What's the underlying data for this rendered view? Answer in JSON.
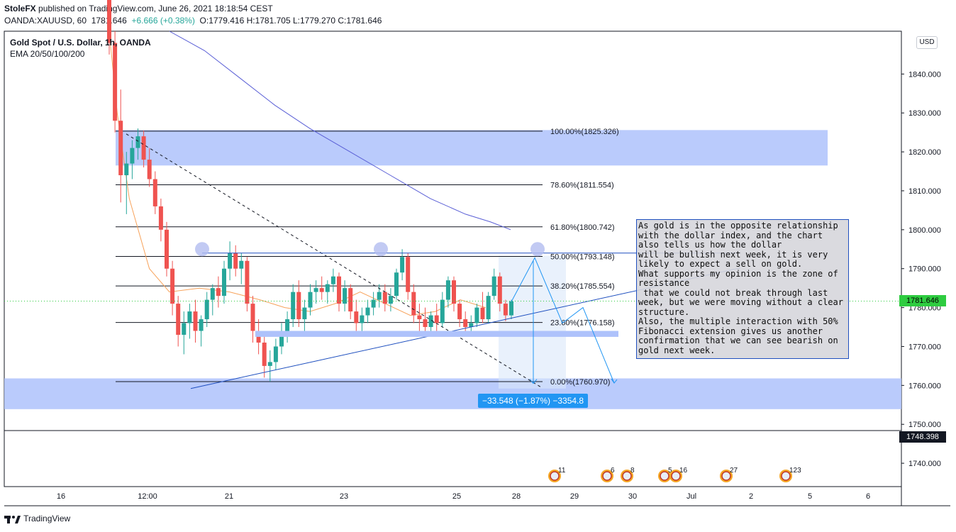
{
  "header": {
    "line1_author": "StoleFX",
    "line1_rest": "published on TradingView.com, June 26, 2021 18:18:54 CEST",
    "symbol": "OANDA:XAUUSD, 60",
    "last": "1781.646",
    "change": "+6.666 (+0.38%)",
    "ohlc": "O:1779.416 H:1781.705 L:1779.270 C:1781.646"
  },
  "legend": {
    "title": "Gold Spot / U.S. Dollar, 1h, OANDA",
    "indicators": "EMA 20/50/100/200"
  },
  "currency_button": "USD",
  "price_tag": "1781.646",
  "last_tag": "1748.398",
  "measure_label": "−33.548 (−1.87%) −3354.8",
  "note_text": "As gold is in the opposite relationship with the dollar index, and the chart also tells us how the dollar\nwill be bullish next week, it is very likely to expect a sell on gold.\nWhat supports my opinion is the zone of resistance\n that we could not break through last week, but we were moving without a clear structure.\nAlso, the multiple interaction with 50% Fibonacci extension gives us another confirmation that we can see bearish on gold next week.",
  "footer": {
    "brand": "TradingView"
  },
  "colors": {
    "up": "#26a69a",
    "down": "#ef5350",
    "zone": "#aec2fb",
    "ema_orange": "#f7a35c",
    "ema_blue": "#5a5fd6",
    "accent": "#2196f3"
  },
  "chart_data": {
    "type": "candlestick",
    "y_ticks": [
      1740,
      1750,
      1760,
      1770,
      1780,
      1790,
      1800,
      1810,
      1820,
      1830,
      1840
    ],
    "y_tick_labels": [
      "1740.000",
      "1750.000",
      "1760.000",
      "1770.000",
      "1780.000",
      "1790.000",
      "1800.000",
      "1810.000",
      "1820.000",
      "1830.000",
      "1840.000"
    ],
    "ylim": [
      1734,
      1851
    ],
    "x_tick_labels": [
      "16",
      "12:00",
      "21",
      "23",
      "25",
      "28",
      "29",
      "30",
      "Jul",
      "2",
      "5",
      "6"
    ],
    "fib_levels": [
      {
        "label": "100.00%(1825.326)",
        "price": 1825.326
      },
      {
        "label": "78.60%(1811.554)",
        "price": 1811.554
      },
      {
        "label": "61.80%(1800.742)",
        "price": 1800.742
      },
      {
        "label": "50.00%(1793.148)",
        "price": 1793.148
      },
      {
        "label": "38.20%(1785.554)",
        "price": 1785.554
      },
      {
        "label": "23.60%(1776.158)",
        "price": 1776.158
      },
      {
        "label": "0.00%(1760.970)",
        "price": 1760.97
      }
    ],
    "zones": [
      {
        "from": 1816.5,
        "to": 1825.6
      },
      {
        "from": 1753.9,
        "to": 1761.8
      }
    ],
    "events": [
      "11",
      "6",
      "8",
      "5",
      "16",
      "27",
      "123"
    ],
    "candles": [
      {
        "o": 1862.0,
        "h": 1866.0,
        "l": 1845.0,
        "c": 1848.0
      },
      {
        "o": 1848.0,
        "h": 1851.0,
        "l": 1825.0,
        "c": 1828.0
      },
      {
        "o": 1828.0,
        "h": 1836.0,
        "l": 1807.0,
        "c": 1814.0
      },
      {
        "o": 1814.0,
        "h": 1820.0,
        "l": 1804.0,
        "c": 1817.0
      },
      {
        "o": 1817.0,
        "h": 1823.0,
        "l": 1813.0,
        "c": 1821.0
      },
      {
        "o": 1821.0,
        "h": 1826.0,
        "l": 1818.0,
        "c": 1824.0
      },
      {
        "o": 1824.0,
        "h": 1825.5,
        "l": 1816.0,
        "c": 1818.0
      },
      {
        "o": 1818.0,
        "h": 1821.0,
        "l": 1811.0,
        "c": 1813.0
      },
      {
        "o": 1813.0,
        "h": 1815.0,
        "l": 1804.0,
        "c": 1806.0
      },
      {
        "o": 1806.0,
        "h": 1808.0,
        "l": 1797.0,
        "c": 1800.0
      },
      {
        "o": 1800.0,
        "h": 1802.0,
        "l": 1788.0,
        "c": 1790.0
      },
      {
        "o": 1790.0,
        "h": 1792.0,
        "l": 1778.0,
        "c": 1781.0
      },
      {
        "o": 1781.0,
        "h": 1783.0,
        "l": 1770.0,
        "c": 1773.0
      },
      {
        "o": 1773.0,
        "h": 1779.0,
        "l": 1768.0,
        "c": 1776.0
      },
      {
        "o": 1776.0,
        "h": 1781.0,
        "l": 1772.0,
        "c": 1779.0
      },
      {
        "o": 1779.0,
        "h": 1782.0,
        "l": 1771.0,
        "c": 1774.0
      },
      {
        "o": 1774.0,
        "h": 1778.0,
        "l": 1770.0,
        "c": 1777.0
      },
      {
        "o": 1777.0,
        "h": 1784.0,
        "l": 1775.0,
        "c": 1782.0
      },
      {
        "o": 1782.0,
        "h": 1786.0,
        "l": 1778.0,
        "c": 1785.0
      },
      {
        "o": 1785.0,
        "h": 1788.0,
        "l": 1780.0,
        "c": 1783.0
      },
      {
        "o": 1783.0,
        "h": 1792.0,
        "l": 1781.0,
        "c": 1790.0
      },
      {
        "o": 1790.0,
        "h": 1797.0,
        "l": 1787.0,
        "c": 1794.0
      },
      {
        "o": 1794.0,
        "h": 1796.0,
        "l": 1788.0,
        "c": 1790.0
      },
      {
        "o": 1790.0,
        "h": 1794.0,
        "l": 1786.0,
        "c": 1792.0
      },
      {
        "o": 1792.0,
        "h": 1793.0,
        "l": 1779.0,
        "c": 1781.0
      },
      {
        "o": 1781.0,
        "h": 1783.0,
        "l": 1771.0,
        "c": 1774.0
      },
      {
        "o": 1774.0,
        "h": 1777.0,
        "l": 1768.0,
        "c": 1771.0
      },
      {
        "o": 1771.0,
        "h": 1773.0,
        "l": 1762.0,
        "c": 1765.0
      },
      {
        "o": 1765.0,
        "h": 1769.0,
        "l": 1761.0,
        "c": 1766.0
      },
      {
        "o": 1766.0,
        "h": 1772.0,
        "l": 1764.0,
        "c": 1770.0
      },
      {
        "o": 1770.0,
        "h": 1776.0,
        "l": 1768.0,
        "c": 1774.0
      },
      {
        "o": 1774.0,
        "h": 1779.0,
        "l": 1771.0,
        "c": 1777.0
      },
      {
        "o": 1777.0,
        "h": 1786.0,
        "l": 1775.0,
        "c": 1784.0
      },
      {
        "o": 1784.0,
        "h": 1787.0,
        "l": 1775.0,
        "c": 1777.0
      },
      {
        "o": 1777.0,
        "h": 1782.0,
        "l": 1774.0,
        "c": 1780.0
      },
      {
        "o": 1780.0,
        "h": 1786.0,
        "l": 1778.0,
        "c": 1784.0
      },
      {
        "o": 1784.0,
        "h": 1787.0,
        "l": 1781.0,
        "c": 1785.0
      },
      {
        "o": 1785.0,
        "h": 1788.0,
        "l": 1782.0,
        "c": 1784.0
      },
      {
        "o": 1784.0,
        "h": 1787.0,
        "l": 1781.0,
        "c": 1786.0
      },
      {
        "o": 1786.0,
        "h": 1790.0,
        "l": 1784.0,
        "c": 1788.0
      },
      {
        "o": 1788.0,
        "h": 1789.0,
        "l": 1779.0,
        "c": 1781.0
      },
      {
        "o": 1781.0,
        "h": 1787.0,
        "l": 1779.0,
        "c": 1785.0
      },
      {
        "o": 1785.0,
        "h": 1786.0,
        "l": 1777.0,
        "c": 1779.0
      },
      {
        "o": 1779.0,
        "h": 1782.0,
        "l": 1773.0,
        "c": 1776.0
      },
      {
        "o": 1776.0,
        "h": 1780.0,
        "l": 1774.0,
        "c": 1778.0
      },
      {
        "o": 1778.0,
        "h": 1782.0,
        "l": 1776.0,
        "c": 1780.0
      },
      {
        "o": 1780.0,
        "h": 1784.0,
        "l": 1778.0,
        "c": 1782.0
      },
      {
        "o": 1782.0,
        "h": 1786.0,
        "l": 1780.0,
        "c": 1784.0
      },
      {
        "o": 1784.0,
        "h": 1786.0,
        "l": 1779.0,
        "c": 1781.0
      },
      {
        "o": 1781.0,
        "h": 1785.0,
        "l": 1779.0,
        "c": 1783.0
      },
      {
        "o": 1783.0,
        "h": 1790.0,
        "l": 1782.0,
        "c": 1789.0
      },
      {
        "o": 1789.0,
        "h": 1795.0,
        "l": 1787.0,
        "c": 1793.0
      },
      {
        "o": 1793.0,
        "h": 1794.0,
        "l": 1782.0,
        "c": 1784.0
      },
      {
        "o": 1784.0,
        "h": 1786.0,
        "l": 1776.0,
        "c": 1778.0
      },
      {
        "o": 1778.0,
        "h": 1781.0,
        "l": 1774.0,
        "c": 1777.0
      },
      {
        "o": 1777.0,
        "h": 1780.0,
        "l": 1773.0,
        "c": 1775.0
      },
      {
        "o": 1775.0,
        "h": 1779.0,
        "l": 1773.0,
        "c": 1778.0
      },
      {
        "o": 1778.0,
        "h": 1781.0,
        "l": 1774.0,
        "c": 1776.0
      },
      {
        "o": 1776.0,
        "h": 1784.0,
        "l": 1775.0,
        "c": 1782.0
      },
      {
        "o": 1782.0,
        "h": 1788.0,
        "l": 1780.0,
        "c": 1787.0
      },
      {
        "o": 1787.0,
        "h": 1788.0,
        "l": 1779.0,
        "c": 1781.0
      },
      {
        "o": 1781.0,
        "h": 1782.0,
        "l": 1775.0,
        "c": 1777.0
      },
      {
        "o": 1777.0,
        "h": 1779.0,
        "l": 1773.0,
        "c": 1775.0
      },
      {
        "o": 1775.0,
        "h": 1778.0,
        "l": 1773.5,
        "c": 1776.0
      },
      {
        "o": 1776.0,
        "h": 1781.0,
        "l": 1775.0,
        "c": 1780.0
      },
      {
        "o": 1780.0,
        "h": 1784.0,
        "l": 1776.0,
        "c": 1777.0
      },
      {
        "o": 1777.0,
        "h": 1784.0,
        "l": 1776.0,
        "c": 1783.0
      },
      {
        "o": 1783.0,
        "h": 1790.0,
        "l": 1782.0,
        "c": 1788.0
      },
      {
        "o": 1788.0,
        "h": 1789.0,
        "l": 1779.0,
        "c": 1781.0
      },
      {
        "o": 1781.0,
        "h": 1782.0,
        "l": 1776.5,
        "c": 1778.0
      },
      {
        "o": 1778.0,
        "h": 1782.0,
        "l": 1777.0,
        "c": 1781.6
      }
    ],
    "ema_orange": [
      [
        0,
        1851
      ],
      [
        8,
        1830
      ],
      [
        20,
        1808
      ],
      [
        40,
        1790
      ],
      [
        60,
        1784
      ],
      [
        90,
        1785
      ],
      [
        120,
        1784
      ],
      [
        150,
        1782
      ],
      [
        175,
        1780
      ],
      [
        200,
        1779
      ],
      [
        225,
        1781
      ],
      [
        250,
        1784
      ],
      [
        275,
        1781
      ],
      [
        300,
        1778
      ],
      [
        325,
        1779
      ],
      [
        350,
        1782
      ],
      [
        375,
        1780
      ]
    ],
    "ema_blue": [
      [
        60,
        1851
      ],
      [
        95,
        1846
      ],
      [
        130,
        1839
      ],
      [
        165,
        1832
      ],
      [
        200,
        1826
      ],
      [
        240,
        1820
      ],
      [
        280,
        1814
      ],
      [
        320,
        1808
      ],
      [
        355,
        1804
      ],
      [
        380,
        1802
      ],
      [
        400,
        1800
      ]
    ]
  }
}
